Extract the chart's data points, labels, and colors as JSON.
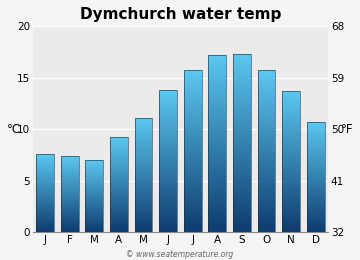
{
  "title": "Dymchurch water temp",
  "months": [
    "J",
    "F",
    "M",
    "A",
    "M",
    "J",
    "J",
    "A",
    "S",
    "O",
    "N",
    "D"
  ],
  "values_c": [
    7.6,
    7.4,
    7.0,
    9.2,
    11.1,
    13.8,
    15.7,
    17.2,
    17.3,
    15.7,
    13.7,
    10.7
  ],
  "ylim_c": [
    0,
    20
  ],
  "ylim_f": [
    32,
    68
  ],
  "yticks_c": [
    0,
    5,
    10,
    15,
    20
  ],
  "yticks_f": [
    32,
    41,
    50,
    59,
    68
  ],
  "ylabel_left": "°C",
  "ylabel_right": "°F",
  "bar_color_top": "#5bc8f0",
  "bar_color_bottom": "#0d3b6e",
  "bg_color": "#ebebeb",
  "fig_bg_color": "#f5f5f5",
  "title_fontsize": 11,
  "axis_fontsize": 7.5,
  "credit": "© www.seatemperature.org",
  "credit_fontsize": 5.5
}
